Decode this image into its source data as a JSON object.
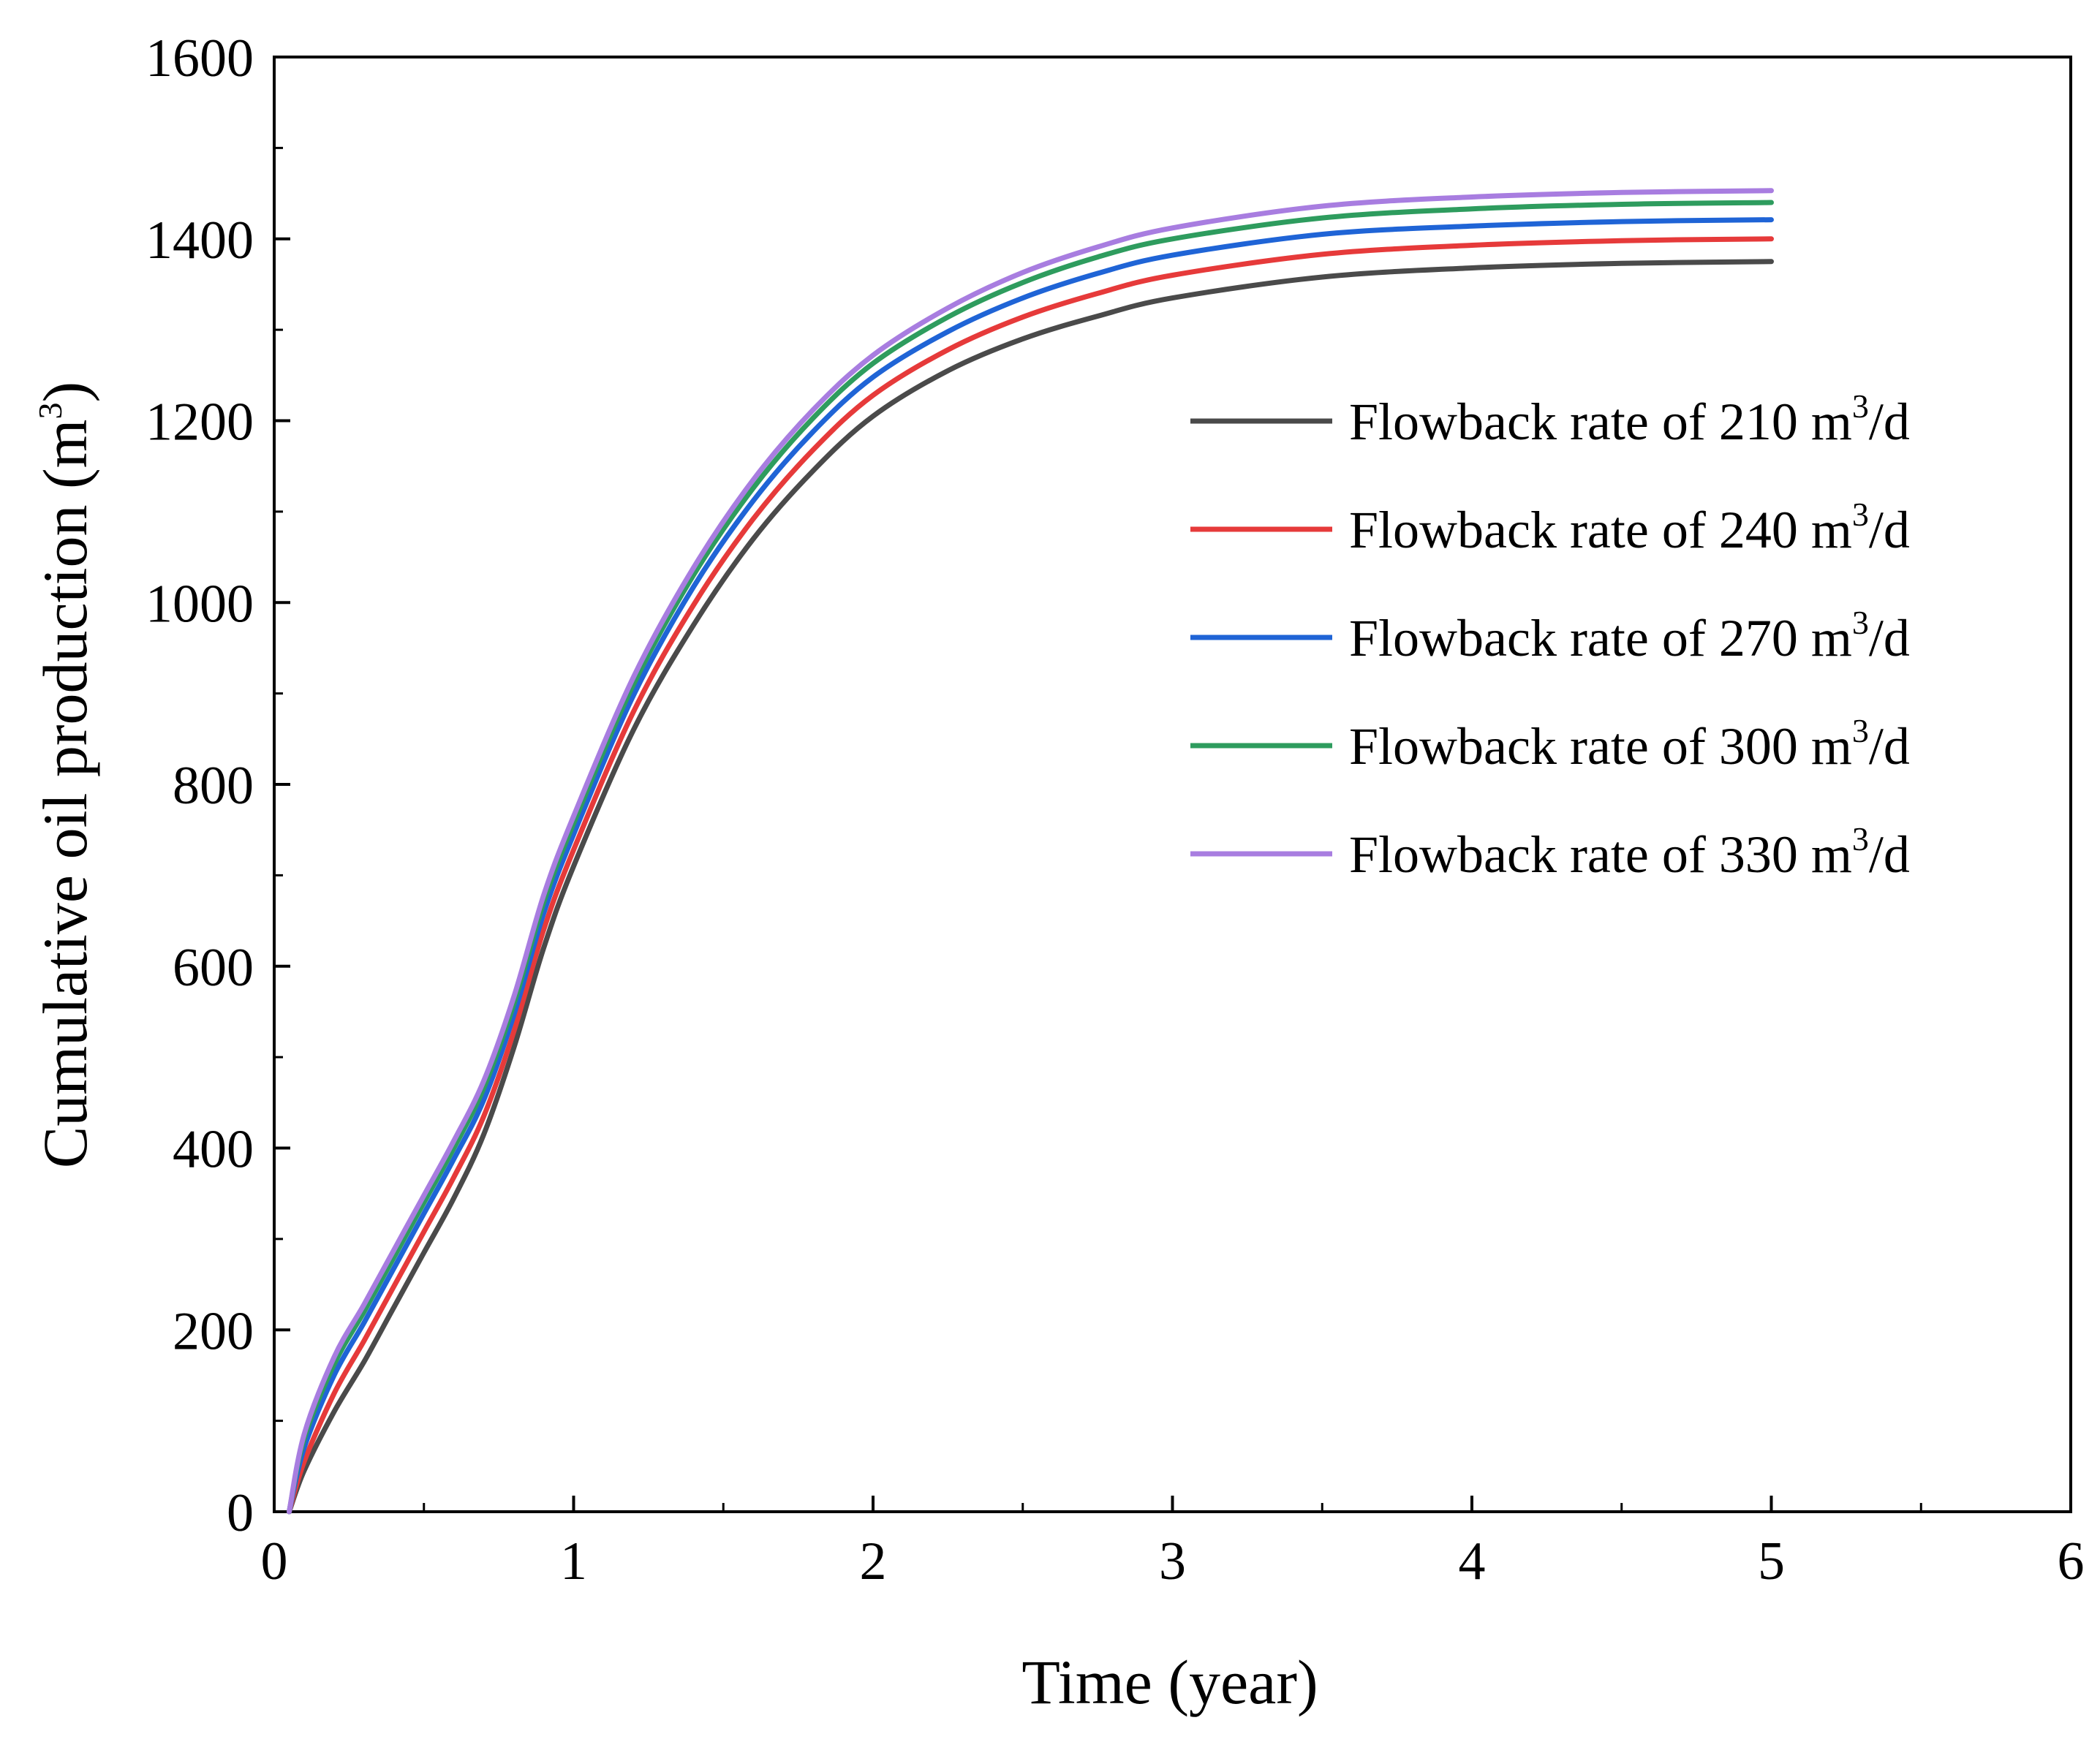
{
  "chart_data": {
    "type": "line",
    "title": "",
    "xlabel": "Time (year)",
    "ylabel_main": "Cumulative oil production (m",
    "ylabel_sup": "3",
    "ylabel_end": ")",
    "xlim": [
      0,
      6
    ],
    "ylim": [
      0,
      1600
    ],
    "xticks": [
      0,
      1,
      2,
      3,
      4,
      5,
      6
    ],
    "yticks": [
      0,
      200,
      400,
      600,
      800,
      1000,
      1200,
      1400,
      1600
    ],
    "xtick_labels": [
      "0",
      "1",
      "2",
      "3",
      "4",
      "5",
      "6"
    ],
    "ytick_labels": [
      "0",
      "200",
      "400",
      "600",
      "800",
      "1000",
      "1200",
      "1400",
      "1600"
    ],
    "grid": false,
    "legend_position": "right",
    "x": [
      0.05,
      0.1,
      0.2,
      0.3,
      0.4,
      0.5,
      0.6,
      0.7,
      0.8,
      0.9,
      1.0,
      1.2,
      1.4,
      1.6,
      1.8,
      2.0,
      2.25,
      2.5,
      2.75,
      3.0,
      3.5,
      4.0,
      4.5,
      5.0
    ],
    "series": [
      {
        "name": "Flowback rate of 210 m³/d",
        "label_main": "Flowback rate of 210 m",
        "label_sup": "3",
        "label_end": "/d",
        "color": "#4a4a4a",
        "values": [
          0,
          45,
          110,
          165,
          225,
          285,
          345,
          415,
          510,
          620,
          710,
          860,
          975,
          1070,
          1145,
          1205,
          1255,
          1290,
          1315,
          1335,
          1358,
          1368,
          1373,
          1375
        ]
      },
      {
        "name": "Flowback rate of  240 m³/d",
        "label_main": "Flowback rate of  240 m",
        "label_sup": "3",
        "label_end": "/d",
        "color": "#e63a3a",
        "values": [
          0,
          55,
          130,
          188,
          248,
          308,
          368,
          435,
          528,
          640,
          728,
          880,
          997,
          1092,
          1168,
          1228,
          1278,
          1314,
          1340,
          1360,
          1383,
          1393,
          1398,
          1400
        ]
      },
      {
        "name": "Flowback rate of  270 m³/d",
        "label_main": "Flowback rate of  270 m",
        "label_sup": "3",
        "label_end": "/d",
        "color": "#1f64d6",
        "values": [
          0,
          70,
          150,
          208,
          268,
          328,
          388,
          453,
          546,
          658,
          745,
          898,
          1017,
          1112,
          1188,
          1248,
          1298,
          1335,
          1362,
          1382,
          1405,
          1414,
          1419,
          1421
        ]
      },
      {
        "name": "Flowback rate of  300 m³/d",
        "label_main": "Flowback rate of  300 m",
        "label_sup": "3",
        "label_end": "/d",
        "color": "#2e9c5e",
        "values": [
          0,
          80,
          162,
          220,
          280,
          340,
          400,
          466,
          558,
          670,
          757,
          910,
          1030,
          1126,
          1203,
          1263,
          1314,
          1352,
          1380,
          1400,
          1423,
          1433,
          1438,
          1440
        ]
      },
      {
        "name": "Flowback rate of 330 m³/d",
        "label_main": "Flowback rate of 330 m",
        "label_sup": "3",
        "label_end": "/d",
        "color": "#a87de0",
        "values": [
          0,
          85,
          170,
          228,
          288,
          348,
          408,
          474,
          566,
          678,
          765,
          918,
          1038,
          1135,
          1212,
          1272,
          1324,
          1363,
          1391,
          1412,
          1436,
          1446,
          1451,
          1453
        ]
      }
    ]
  }
}
